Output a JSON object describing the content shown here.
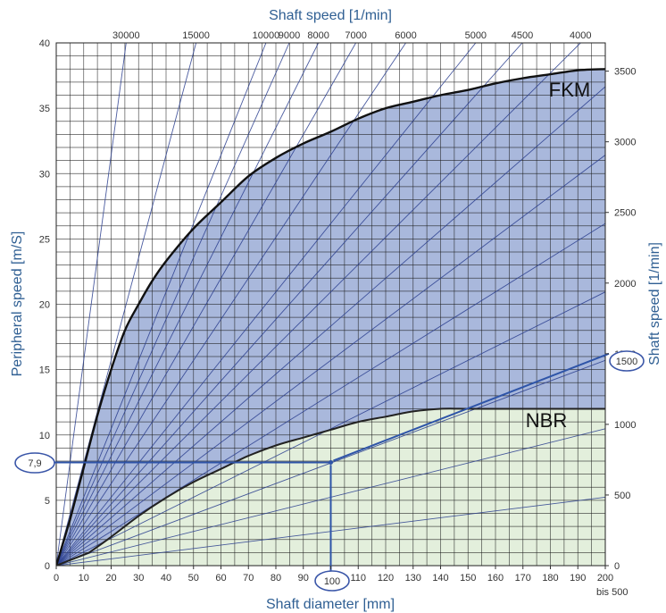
{
  "chart_data": {
    "type": "area",
    "xlabel": "Shaft diameter [mm]",
    "ylabel": "Peripheral speed [m/S]",
    "top_axis_label": "Shaft speed [1/min]",
    "right_axis_label": "Shaft speed [1/min]",
    "x_ticks": [
      "0",
      "10",
      "20",
      "30",
      "40",
      "50",
      "60",
      "70",
      "80",
      "90",
      "100",
      "110",
      "120",
      "130",
      "140",
      "150",
      "160",
      "170",
      "180",
      "190",
      "200"
    ],
    "x_extra_label": "bis 500",
    "y_ticks": [
      "0",
      "5",
      "10",
      "15",
      "20",
      "25",
      "30",
      "35",
      "40"
    ],
    "right_ticks": [
      "0",
      "500",
      "1000",
      "1500",
      "2000",
      "2500",
      "3000",
      "3500"
    ],
    "top_ticks": [
      "30000",
      "15000",
      "10000",
      "9000",
      "8000",
      "7000",
      "6000",
      "5000",
      "4500",
      "4000"
    ],
    "xlim": [
      0,
      200
    ],
    "ylim": [
      0,
      40
    ],
    "right_axis_range": [
      0,
      3700
    ],
    "grid": true,
    "rpm_lines": [
      30000,
      15000,
      10000,
      9000,
      8000,
      7000,
      6000,
      5000,
      4500,
      4000,
      3500,
      3000,
      2500,
      2000,
      1500,
      1000,
      500
    ],
    "series": [
      {
        "name": "FKM",
        "color": "#a9b8dc",
        "x": [
          5,
          10,
          15,
          20,
          25,
          30,
          35,
          40,
          50,
          60,
          70,
          80,
          90,
          100,
          110,
          120,
          130,
          140,
          150,
          160,
          170,
          180,
          190,
          200
        ],
        "y": [
          3.5,
          7.5,
          11.5,
          15,
          18,
          20,
          21.8,
          23.3,
          25.8,
          27.8,
          29.8,
          31.2,
          32.3,
          33.2,
          34.2,
          35,
          35.5,
          36,
          36.4,
          36.9,
          37.3,
          37.6,
          37.9,
          38
        ]
      },
      {
        "name": "NBR",
        "color": "#e3efdc",
        "x": [
          12,
          20,
          30,
          40,
          50,
          60,
          70,
          80,
          90,
          100,
          110,
          120,
          130,
          140,
          150,
          160,
          170,
          180,
          190,
          200
        ],
        "y": [
          1,
          2.2,
          3.8,
          5.2,
          6.4,
          7.4,
          8.4,
          9.2,
          9.8,
          10.4,
          11,
          11.4,
          11.8,
          12,
          12,
          12,
          12,
          12,
          12,
          12
        ]
      }
    ],
    "example": {
      "diameter": "100",
      "speed_rpm": "1500",
      "peripheral_speed": "7,9",
      "x": 100,
      "y": 7.9,
      "rpm": 1500
    }
  }
}
